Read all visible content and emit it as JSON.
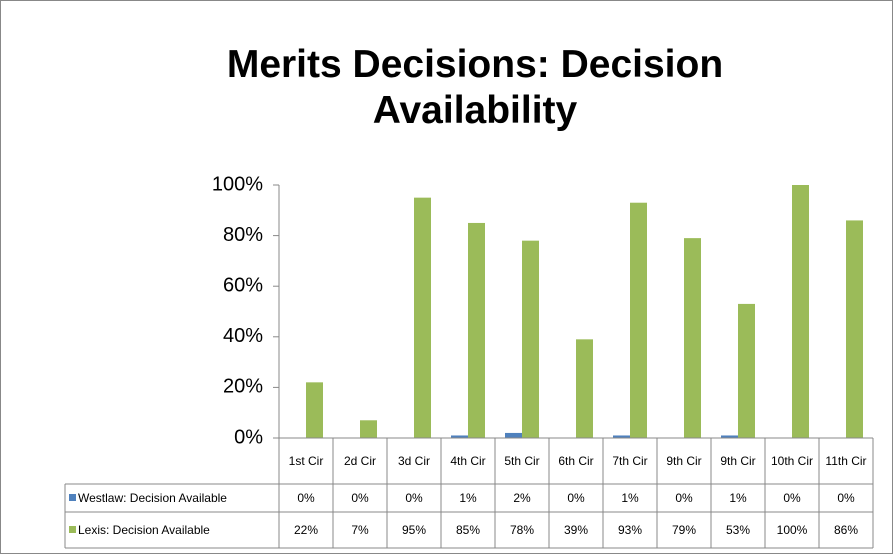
{
  "chart_data": {
    "type": "bar",
    "title": "Merits Decisions: Decision Availability",
    "categories": [
      "1st Cir",
      "2d Cir",
      "3d Cir",
      "4th Cir",
      "5th Cir",
      "6th Cir",
      "7th Cir",
      "9th Cir",
      "9th Cir",
      "10th Cir",
      "11th Cir"
    ],
    "series": [
      {
        "name": "Westlaw: Decision Available",
        "color": "#4f81bd",
        "values": [
          0,
          0,
          0,
          1,
          2,
          0,
          1,
          0,
          1,
          0,
          0
        ],
        "value_labels": [
          "0%",
          "0%",
          "0%",
          "1%",
          "2%",
          "0%",
          "1%",
          "0%",
          "1%",
          "0%",
          "0%"
        ]
      },
      {
        "name": "Lexis: Decision Available",
        "color": "#9bbb59",
        "values": [
          22,
          7,
          95,
          85,
          78,
          39,
          93,
          79,
          53,
          100,
          86
        ],
        "value_labels": [
          "22%",
          "7%",
          "95%",
          "85%",
          "78%",
          "39%",
          "93%",
          "79%",
          "53%",
          "100%",
          "86%"
        ]
      }
    ],
    "ylim": [
      0,
      100
    ],
    "yticks": [
      {
        "value": 0,
        "label": "0%"
      },
      {
        "value": 20,
        "label": "20%"
      },
      {
        "value": 40,
        "label": "40%"
      },
      {
        "value": 60,
        "label": "60%"
      },
      {
        "value": 80,
        "label": "80%"
      },
      {
        "value": 100,
        "label": "100%"
      }
    ],
    "legend": "data-table"
  }
}
